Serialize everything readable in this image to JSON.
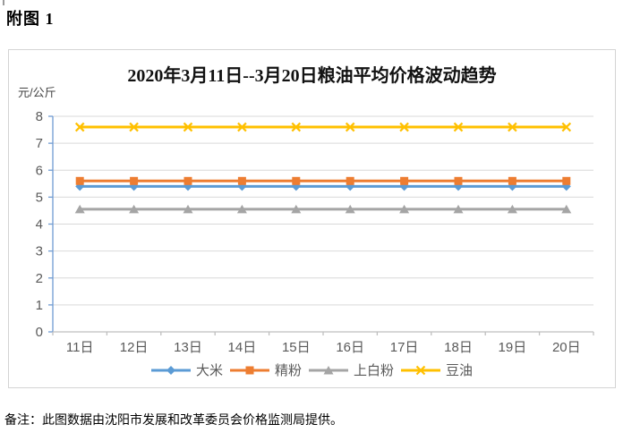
{
  "page": {
    "heading": "附图 1",
    "note": "备注：此图数据由沈阳市发展和改革委员会价格监测局提供。"
  },
  "chart_data": {
    "type": "line",
    "title": "2020年3月11日--3月20日粮油平均价格波动趋势",
    "ylabel": "元/公斤",
    "xlabel": "",
    "ylim": [
      0,
      8
    ],
    "yticks": [
      0,
      1,
      2,
      3,
      4,
      5,
      6,
      7,
      8
    ],
    "grid": true,
    "legend_position": "bottom",
    "categories": [
      "11日",
      "12日",
      "13日",
      "14日",
      "15日",
      "16日",
      "17日",
      "18日",
      "19日",
      "20日"
    ],
    "series": [
      {
        "name": "大米",
        "color": "#5B9BD5",
        "marker": "diamond",
        "values": [
          5.4,
          5.4,
          5.4,
          5.4,
          5.4,
          5.4,
          5.4,
          5.4,
          5.4,
          5.4
        ]
      },
      {
        "name": "精粉",
        "color": "#ED7D31",
        "marker": "square",
        "values": [
          5.6,
          5.6,
          5.6,
          5.6,
          5.6,
          5.6,
          5.6,
          5.6,
          5.6,
          5.6
        ]
      },
      {
        "name": "上白粉",
        "color": "#A5A5A5",
        "marker": "triangle",
        "values": [
          4.55,
          4.55,
          4.55,
          4.55,
          4.55,
          4.55,
          4.55,
          4.55,
          4.55,
          4.55
        ]
      },
      {
        "name": "豆油",
        "color": "#FFC000",
        "marker": "x",
        "values": [
          7.6,
          7.6,
          7.6,
          7.6,
          7.6,
          7.6,
          7.6,
          7.6,
          7.6,
          7.6
        ]
      }
    ],
    "colors": {
      "y_axis": "#6f9bd2",
      "x_axis": "#bfbfbf",
      "gridline": "#d9d9d9",
      "tick_label": "#595959"
    }
  }
}
